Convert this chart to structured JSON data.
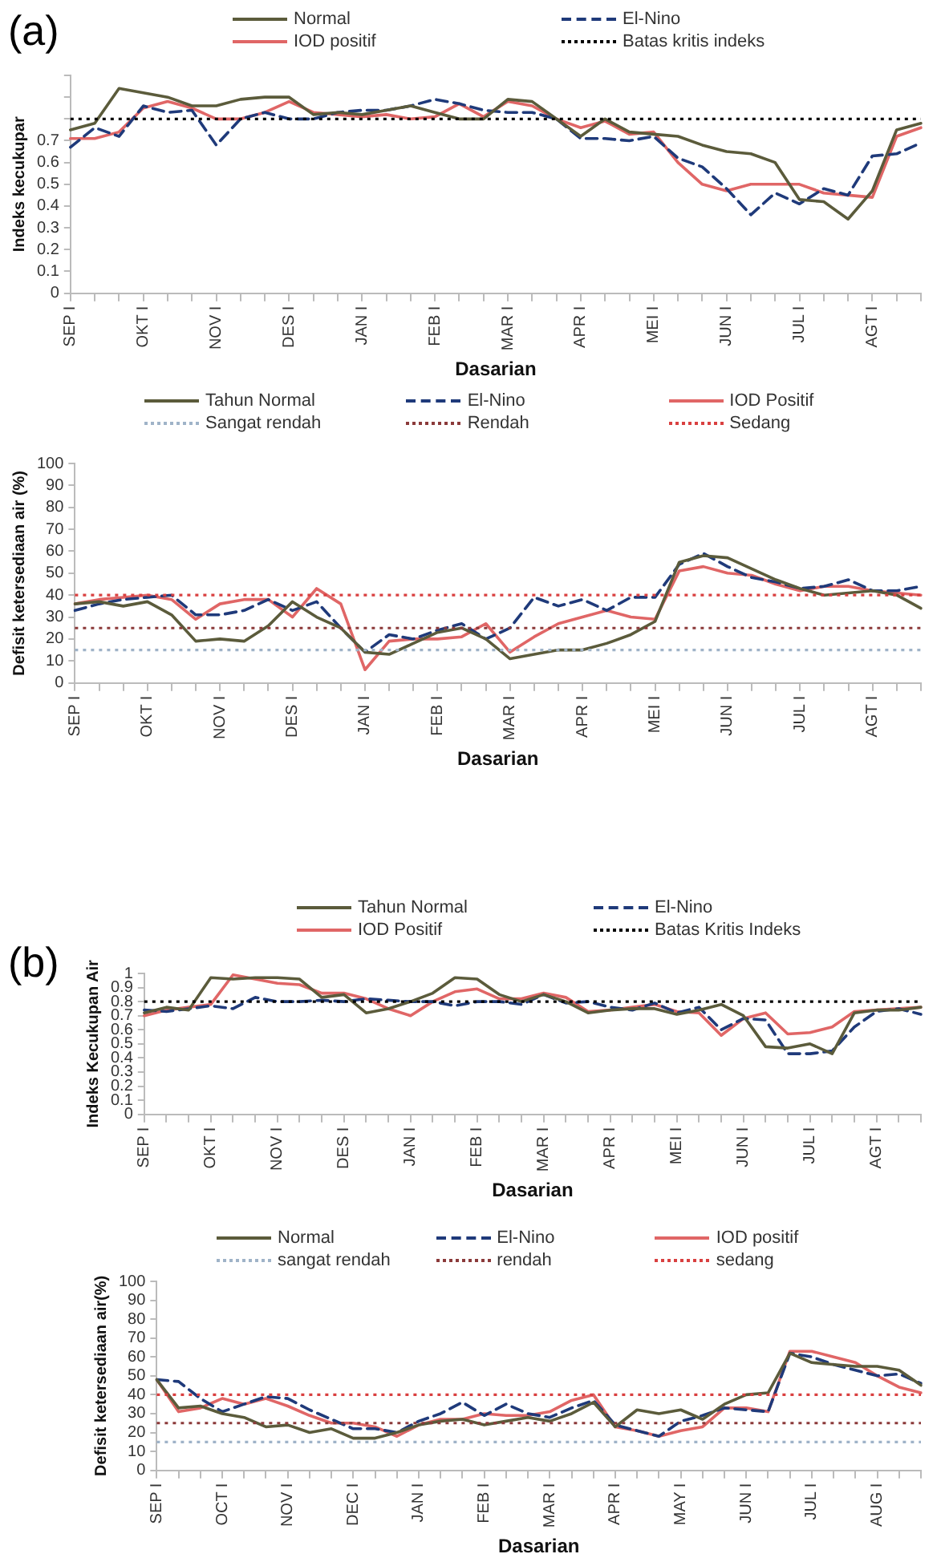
{
  "chart_data": [
    {
      "type": "line",
      "annotations": [
        "(a)"
      ],
      "xlabel": "Dasarian",
      "ylabel": "Indeks kecukupar",
      "legend": "top",
      "grid": false,
      "marker": "none",
      "categories": [
        "SEP I",
        null,
        null,
        "OKT I",
        null,
        null,
        "NOV I",
        null,
        null,
        "DES I",
        null,
        null,
        "JAN I",
        null,
        null,
        "FEB I",
        null,
        null,
        "MAR I",
        null,
        null,
        "APR I",
        null,
        null,
        "MEI I",
        null,
        null,
        "JUN I",
        null,
        null,
        "JUL I",
        null,
        null,
        "AGT I",
        null,
        null
      ],
      "ylim": [
        0,
        1
      ],
      "yticks": [
        0,
        0.1,
        0.2,
        0.3,
        0.4,
        0.5,
        0.6,
        0.7,
        {
          "value": 0.8,
          "label": null
        },
        {
          "value": 0.9,
          "label": null
        },
        {
          "value": 1,
          "label": null
        }
      ],
      "series": [
        {
          "name": "Normal",
          "color": "#5b5b3b",
          "line_style": "solid",
          "values": [
            0.75,
            0.78,
            0.94,
            0.92,
            0.9,
            0.86,
            0.86,
            0.89,
            0.9,
            0.9,
            0.82,
            0.83,
            0.82,
            0.84,
            0.86,
            0.83,
            0.8,
            0.8,
            0.89,
            0.88,
            0.8,
            0.72,
            0.8,
            0.74,
            0.73,
            0.72,
            0.68,
            0.65,
            0.64,
            0.6,
            0.43,
            0.42,
            0.34,
            0.47,
            0.75,
            0.78
          ]
        },
        {
          "name": "El-Nino",
          "color": "#1f3a7a",
          "line_style": "dashed",
          "values": [
            0.67,
            0.76,
            0.72,
            0.86,
            0.83,
            0.84,
            0.68,
            0.8,
            0.83,
            0.8,
            0.8,
            0.83,
            0.84,
            0.84,
            0.86,
            0.89,
            0.87,
            0.84,
            0.83,
            0.83,
            0.8,
            0.71,
            0.71,
            0.7,
            0.72,
            0.62,
            0.58,
            0.48,
            0.36,
            0.46,
            0.41,
            0.48,
            0.45,
            0.63,
            0.64,
            0.69
          ]
        },
        {
          "name": "IOD positif",
          "color": "#e06666",
          "line_style": "solid",
          "values": [
            0.71,
            0.71,
            0.74,
            0.85,
            0.88,
            0.85,
            0.8,
            0.8,
            0.83,
            0.88,
            0.83,
            0.82,
            0.81,
            0.82,
            0.8,
            0.81,
            0.87,
            0.81,
            0.88,
            0.86,
            0.8,
            0.76,
            0.79,
            0.73,
            0.74,
            0.6,
            0.5,
            0.47,
            0.5,
            0.5,
            0.5,
            0.46,
            0.45,
            0.44,
            0.72,
            0.76
          ]
        }
      ],
      "ref_lines": [
        {
          "axis": "y",
          "value": 0.8,
          "label": "Batas kritis indeks",
          "color": "#000000",
          "line_style": "dotted"
        }
      ]
    },
    {
      "type": "line",
      "xlabel": "Dasarian",
      "ylabel": "Defisit ketersediaan air (%)",
      "legend": "top",
      "grid": false,
      "marker": "none",
      "categories": [
        "SEP I",
        null,
        null,
        "OKT I",
        null,
        null,
        "NOV I",
        null,
        null,
        "DES I",
        null,
        null,
        "JAN I",
        null,
        null,
        "FEB I",
        null,
        null,
        "MAR I",
        null,
        null,
        "APR I",
        null,
        null,
        "MEI I",
        null,
        null,
        "JUN I",
        null,
        null,
        "JUL I",
        null,
        null,
        "AGT I",
        null,
        null
      ],
      "ylim": [
        0,
        100
      ],
      "yticks": [
        0,
        10,
        20,
        30,
        40,
        50,
        60,
        70,
        80,
        90,
        100
      ],
      "series": [
        {
          "name": "Tahun Normal",
          "color": "#5b5b3b",
          "line_style": "solid",
          "values": [
            36,
            37,
            35,
            37,
            31,
            19,
            20,
            19,
            26,
            37,
            30,
            25,
            14,
            13,
            18,
            23,
            25,
            20,
            11,
            13,
            15,
            15,
            18,
            22,
            28,
            55,
            58,
            57,
            52,
            47,
            43,
            40,
            41,
            42,
            40,
            34
          ]
        },
        {
          "name": "El-Nino",
          "color": "#1f3a7a",
          "line_style": "dashed",
          "values": [
            33,
            36,
            38,
            39,
            40,
            31,
            31,
            33,
            38,
            33,
            37,
            25,
            14,
            22,
            20,
            24,
            27,
            20,
            25,
            39,
            35,
            38,
            33,
            39,
            39,
            54,
            59,
            53,
            48,
            46,
            43,
            44,
            47,
            42,
            42,
            44
          ]
        },
        {
          "name": "IOD Positif",
          "color": "#e06666",
          "line_style": "solid",
          "values": [
            36,
            38,
            39,
            40,
            38,
            29,
            36,
            38,
            38,
            30,
            43,
            36,
            6,
            19,
            20,
            20,
            21,
            27,
            14,
            21,
            27,
            30,
            33,
            30,
            29,
            51,
            53,
            50,
            49,
            45,
            42,
            44,
            44,
            42,
            41,
            40
          ]
        }
      ],
      "ref_lines": [
        {
          "axis": "y",
          "value": 15,
          "label": "Sangat rendah",
          "color": "#9fb3c8",
          "line_style": "dotted"
        },
        {
          "axis": "y",
          "value": 25,
          "label": "Rendah",
          "color": "#8b3a3a",
          "line_style": "dotted"
        },
        {
          "axis": "y",
          "value": 40,
          "label": "Sedang",
          "color": "#d94040",
          "line_style": "dotted"
        }
      ]
    },
    {
      "type": "line",
      "annotations": [
        "(b)"
      ],
      "xlabel": "Dasarian",
      "ylabel": "Indeks Kecukupan Air",
      "legend": "top",
      "grid": false,
      "marker": "none",
      "categories": [
        "SEP I",
        null,
        null,
        "OKT I",
        null,
        null,
        "NOV I",
        null,
        null,
        "DES I",
        null,
        null,
        "JAN I",
        null,
        null,
        "FEB I",
        null,
        null,
        "MAR I",
        null,
        null,
        "APR I",
        null,
        null,
        "MEI I",
        null,
        null,
        "JUN I",
        null,
        null,
        "JUL I",
        null,
        null,
        "AGT I",
        null,
        null
      ],
      "ylim": [
        0,
        1
      ],
      "yticks": [
        0,
        0.1,
        0.2,
        0.3,
        0.4,
        0.5,
        0.6,
        0.7,
        0.8,
        0.9,
        1
      ],
      "series": [
        {
          "name": "Tahun Normal",
          "color": "#5b5b3b",
          "line_style": "solid",
          "values": [
            0.72,
            0.76,
            0.74,
            0.97,
            0.96,
            0.97,
            0.97,
            0.96,
            0.83,
            0.85,
            0.72,
            0.75,
            0.8,
            0.86,
            0.97,
            0.96,
            0.85,
            0.8,
            0.85,
            0.8,
            0.72,
            0.74,
            0.75,
            0.75,
            0.71,
            0.74,
            0.78,
            0.7,
            0.48,
            0.47,
            0.5,
            0.43,
            0.72,
            0.74,
            0.74,
            0.76
          ]
        },
        {
          "name": "El-Nino",
          "color": "#1f3a7a",
          "line_style": "dashed",
          "values": [
            0.74,
            0.73,
            0.75,
            0.77,
            0.75,
            0.83,
            0.8,
            0.8,
            0.81,
            0.8,
            0.82,
            0.81,
            0.8,
            0.8,
            0.77,
            0.8,
            0.8,
            0.78,
            0.85,
            0.79,
            0.8,
            0.76,
            0.74,
            0.79,
            0.72,
            0.76,
            0.6,
            0.68,
            0.67,
            0.43,
            0.43,
            0.45,
            0.62,
            0.73,
            0.75,
            0.71
          ]
        },
        {
          "name": "IOD Positif",
          "color": "#e06666",
          "line_style": "solid",
          "values": [
            0.7,
            0.74,
            0.76,
            0.78,
            0.99,
            0.96,
            0.93,
            0.92,
            0.86,
            0.86,
            0.82,
            0.75,
            0.7,
            0.8,
            0.87,
            0.89,
            0.82,
            0.82,
            0.86,
            0.83,
            0.73,
            0.74,
            0.76,
            0.78,
            0.73,
            0.72,
            0.56,
            0.68,
            0.72,
            0.57,
            0.58,
            0.62,
            0.73,
            0.74,
            0.75,
            0.76
          ]
        }
      ],
      "ref_lines": [
        {
          "axis": "y",
          "value": 0.8,
          "label": "Batas Kritis Indeks",
          "color": "#000000",
          "line_style": "dotted"
        }
      ]
    },
    {
      "type": "line",
      "xlabel": "Dasarian",
      "ylabel": "Defisit ketersediaan air(%)",
      "legend": "top",
      "grid": false,
      "marker": "none",
      "categories": [
        "SEP I",
        null,
        null,
        "OCT I",
        null,
        null,
        "NOV I",
        null,
        null,
        "DEC I",
        null,
        null,
        "JAN I",
        null,
        null,
        "FEB I",
        null,
        null,
        "MAR I",
        null,
        null,
        "APR I",
        null,
        null,
        "MAY I",
        null,
        null,
        "JUN I",
        null,
        null,
        "JUL I",
        null,
        null,
        "AUG I",
        null,
        null
      ],
      "ylim": [
        0,
        100
      ],
      "yticks": [
        0,
        10,
        20,
        30,
        40,
        50,
        60,
        70,
        80,
        90,
        100
      ],
      "series": [
        {
          "name": "Normal",
          "color": "#5b5b3b",
          "line_style": "solid",
          "values": [
            48,
            33,
            34,
            30,
            28,
            23,
            24,
            20,
            22,
            17,
            17,
            20,
            24,
            26,
            27,
            24,
            26,
            28,
            26,
            30,
            36,
            23,
            32,
            30,
            32,
            27,
            35,
            40,
            41,
            62,
            57,
            56,
            55,
            55,
            53,
            45
          ]
        },
        {
          "name": "El-Nino",
          "color": "#1f3a7a",
          "line_style": "dashed",
          "values": [
            48,
            47,
            38,
            31,
            35,
            39,
            38,
            32,
            27,
            22,
            22,
            20,
            26,
            30,
            36,
            29,
            35,
            30,
            28,
            33,
            37,
            24,
            21,
            18,
            26,
            29,
            33,
            32,
            31,
            62,
            60,
            56,
            53,
            50,
            51,
            46
          ]
        },
        {
          "name": "IOD positif",
          "color": "#e06666",
          "line_style": "solid",
          "values": [
            48,
            31,
            33,
            38,
            35,
            38,
            34,
            29,
            25,
            25,
            23,
            18,
            24,
            27,
            27,
            30,
            29,
            29,
            31,
            37,
            40,
            23,
            21,
            18,
            21,
            23,
            33,
            33,
            31,
            63,
            63,
            60,
            57,
            50,
            44,
            41
          ]
        }
      ],
      "ref_lines": [
        {
          "axis": "y",
          "value": 15,
          "label": "sangat rendah",
          "color": "#9fb3c8",
          "line_style": "dotted"
        },
        {
          "axis": "y",
          "value": 25,
          "label": "rendah",
          "color": "#8b3a3a",
          "line_style": "dotted"
        },
        {
          "axis": "y",
          "value": 40,
          "label": "sedang",
          "color": "#d94040",
          "line_style": "dotted"
        }
      ]
    }
  ]
}
